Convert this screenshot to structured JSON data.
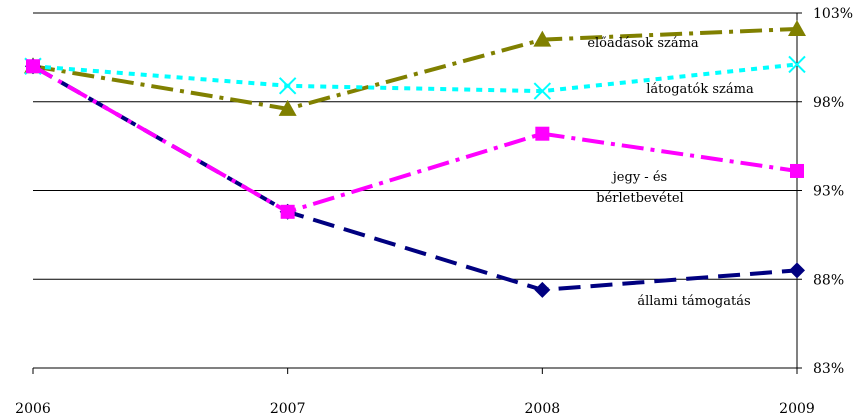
{
  "chart_data": {
    "type": "line",
    "x": [
      "2006",
      "2007",
      "2008",
      "2009"
    ],
    "ylim": [
      83,
      103
    ],
    "y_ticks": [
      "83%",
      "88%",
      "93%",
      "98%",
      "103%"
    ],
    "y_axis_side": "right",
    "grid": true,
    "legend": "none",
    "series": [
      {
        "name": "előadások száma",
        "values": [
          100,
          97.6,
          101.5,
          102.1
        ],
        "color": "#808000",
        "marker": "triangle",
        "dash": "dash-dot",
        "label": [
          "előadások száma"
        ]
      },
      {
        "name": "látogatók száma",
        "values": [
          100,
          98.9,
          98.6,
          100.1
        ],
        "color": "#00ffff",
        "marker": "x",
        "dash": "dotted",
        "label": [
          "látogatók száma"
        ]
      },
      {
        "name": "jegy - és bérletbevétel",
        "values": [
          100,
          91.8,
          96.2,
          94.1
        ],
        "color": "#ff00ff",
        "marker": "square",
        "dash": "dash-dot",
        "label": [
          "jegy - és",
          "bérletbevétel"
        ]
      },
      {
        "name": "állami támogatás",
        "values": [
          100,
          91.8,
          87.4,
          88.5
        ],
        "color": "#000080",
        "marker": "diamond",
        "dash": "long-dash",
        "label": [
          "állami támogatás"
        ]
      }
    ]
  }
}
